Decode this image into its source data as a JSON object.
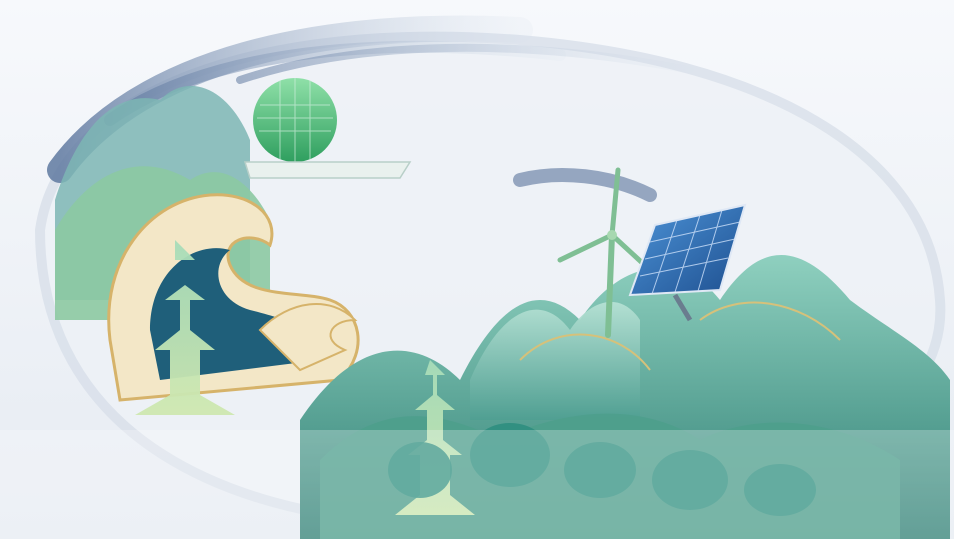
{
  "scene": {
    "palette": {
      "sky": "#f3f6fa",
      "swirl": "#6f86a8",
      "teal_light": "#9fd3c7",
      "teal": "#5fb3a3",
      "teal_dark": "#2f7f74",
      "green_dome": "#55b67a",
      "wave_cream": "#f3e7c7",
      "wave_gold": "#d6b36a",
      "wave_blue": "#1f5f7a",
      "solar_blue": "#2e6fb8",
      "turbine": "#8bbf8f"
    },
    "elements": [
      "ink-brush-swirl",
      "mountains",
      "domed-building",
      "ocean-wave",
      "pagoda",
      "wind-turbine",
      "solar-panel",
      "trees"
    ]
  }
}
